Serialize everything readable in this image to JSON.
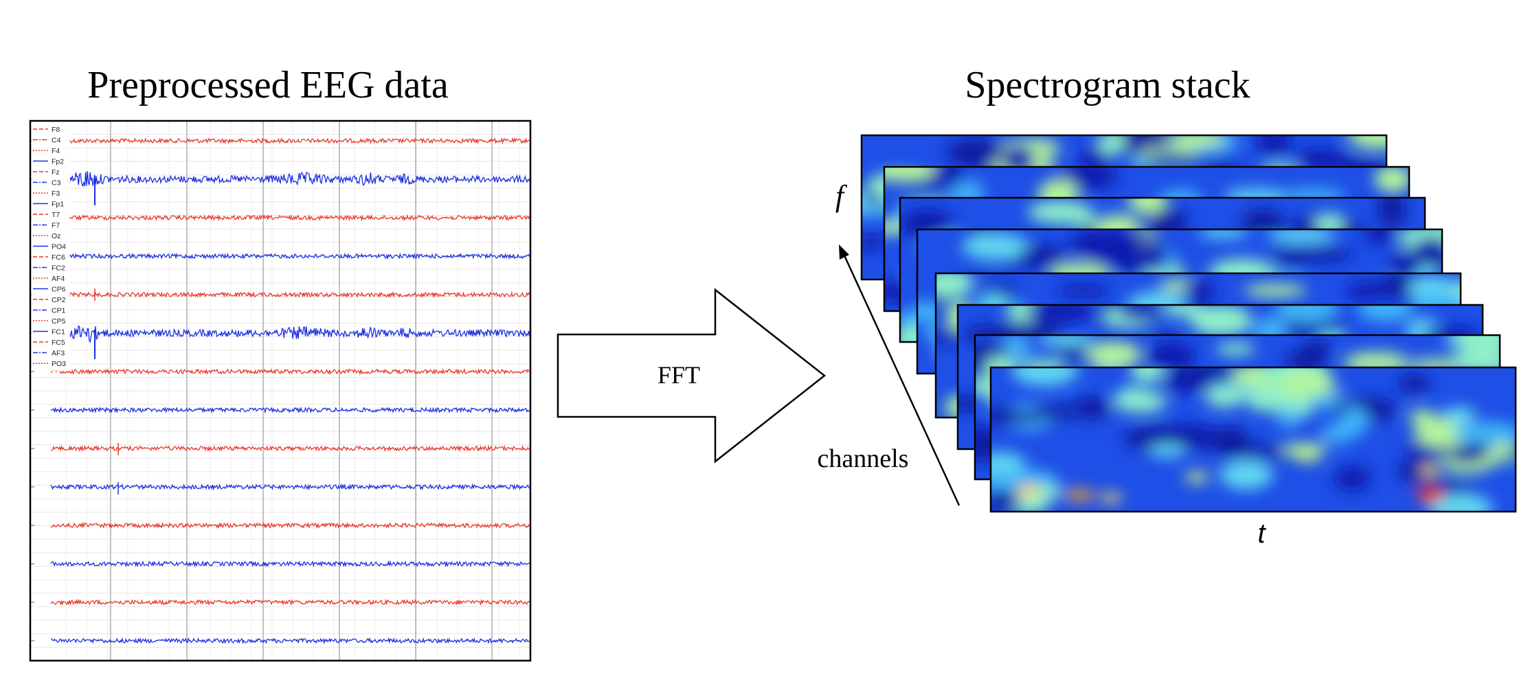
{
  "left_panel": {
    "title": "Preprocessed EEG data",
    "channels": [
      {
        "name": "F8",
        "style": "dashed",
        "color": "#e8372a"
      },
      {
        "name": "C4",
        "style": "dashdot",
        "color": "#e8372a"
      },
      {
        "name": "F4",
        "style": "dotted",
        "color": "#e8372a"
      },
      {
        "name": "Fp2",
        "style": "solid",
        "color": "#1a2ee0"
      },
      {
        "name": "Fz",
        "style": "dashed",
        "color": "#e8372a"
      },
      {
        "name": "C3",
        "style": "dashdot",
        "color": "#1a2ee0"
      },
      {
        "name": "F3",
        "style": "dotted",
        "color": "#e8372a"
      },
      {
        "name": "Fp1",
        "style": "solid",
        "color": "#1a2ee0"
      },
      {
        "name": "T7",
        "style": "dashed",
        "color": "#e8372a"
      },
      {
        "name": "F7",
        "style": "dashdot",
        "color": "#1a2ee0"
      },
      {
        "name": "Oz",
        "style": "dotted",
        "color": "#e8372a"
      },
      {
        "name": "PO4",
        "style": "solid",
        "color": "#1a2ee0"
      },
      {
        "name": "FC6",
        "style": "dashed",
        "color": "#e8372a"
      },
      {
        "name": "FC2",
        "style": "dashdot",
        "color": "#1a2ee0"
      },
      {
        "name": "AF4",
        "style": "dotted",
        "color": "#e8372a"
      },
      {
        "name": "CP6",
        "style": "solid",
        "color": "#1a2ee0"
      },
      {
        "name": "CP2",
        "style": "dashed",
        "color": "#e8372a"
      },
      {
        "name": "CP1",
        "style": "dashdot",
        "color": "#1a2ee0"
      },
      {
        "name": "CP5",
        "style": "dotted",
        "color": "#e8372a"
      },
      {
        "name": "FC1",
        "style": "solid",
        "color": "#1a2ee0"
      },
      {
        "name": "FC5",
        "style": "dashed",
        "color": "#e8372a"
      },
      {
        "name": "AF3",
        "style": "dashdot",
        "color": "#1a2ee0"
      },
      {
        "name": "PO3",
        "style": "dotted",
        "color": "#e8372a"
      }
    ],
    "traces": [
      {
        "color": "#e8372a",
        "noise": "low"
      },
      {
        "color": "#1a2ee0",
        "noise": "high"
      },
      {
        "color": "#e8372a",
        "noise": "low"
      },
      {
        "color": "#1a2ee0",
        "noise": "low"
      },
      {
        "color": "#e8372a",
        "noise": "low"
      },
      {
        "color": "#1a2ee0",
        "noise": "high"
      },
      {
        "color": "#e8372a",
        "noise": "low"
      },
      {
        "color": "#1a2ee0",
        "noise": "low"
      },
      {
        "color": "#e8372a",
        "noise": "low"
      },
      {
        "color": "#1a2ee0",
        "noise": "low"
      },
      {
        "color": "#e8372a",
        "noise": "low"
      },
      {
        "color": "#1a2ee0",
        "noise": "low"
      },
      {
        "color": "#e8372a",
        "noise": "low"
      },
      {
        "color": "#1a2ee0",
        "noise": "low"
      }
    ]
  },
  "arrow": {
    "label": "FFT"
  },
  "right_panel": {
    "title": "Spectrogram stack",
    "freq_axis_label": "f",
    "time_axis_label": "t",
    "channels_label": "channels",
    "layer_count": 8,
    "colormap": "jet"
  }
}
